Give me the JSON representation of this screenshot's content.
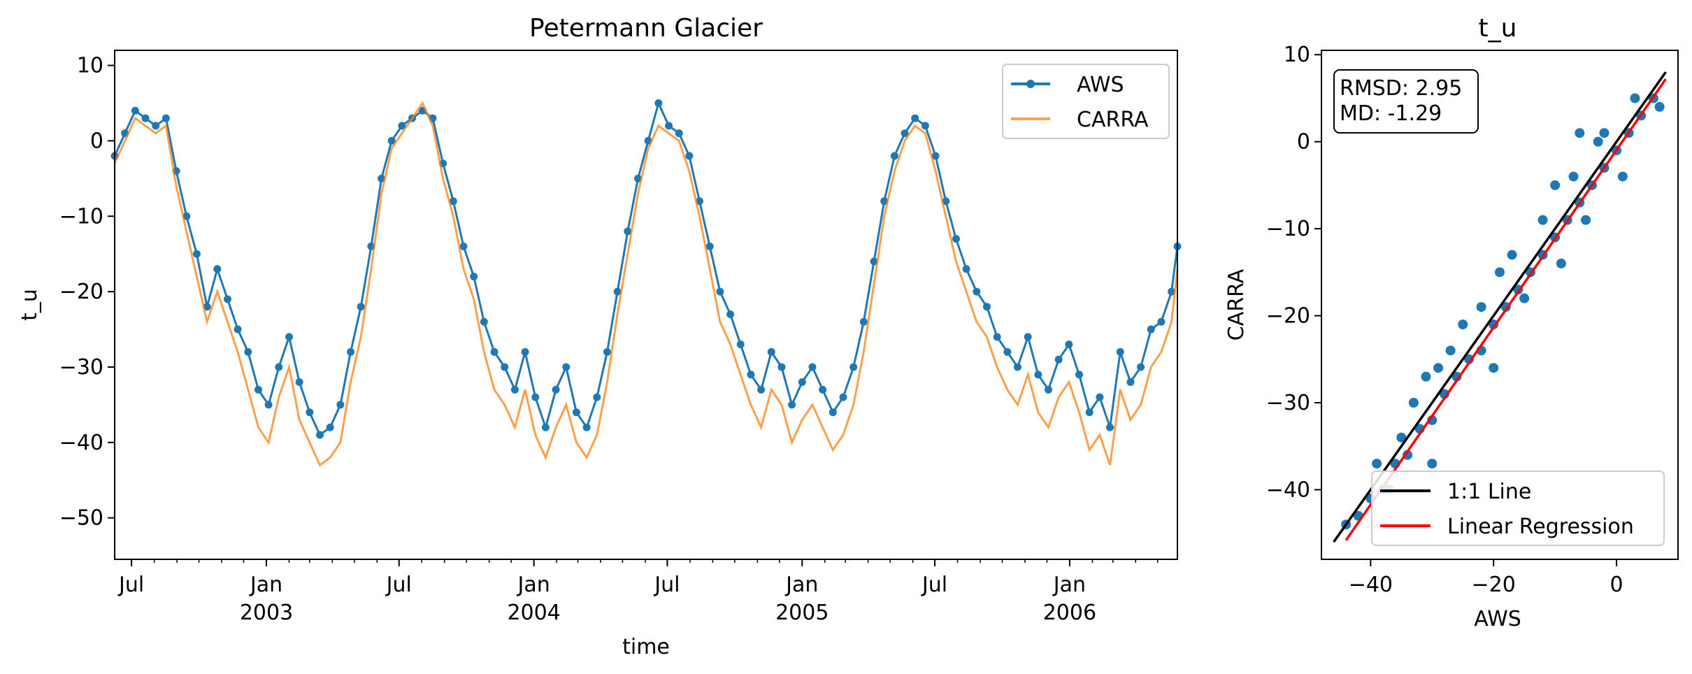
{
  "chart_data": [
    {
      "type": "line",
      "title": "Petermann Glacier",
      "xlabel": "time",
      "ylabel": "t_u",
      "xlim": [
        "2002-06-08",
        "2006-05-28"
      ],
      "ylim": [
        -55.5,
        12
      ],
      "yticks": [
        10,
        0,
        -10,
        -20,
        -30,
        -40,
        -50
      ],
      "yticks_text": [
        "10",
        "0",
        "−10",
        "−20",
        "−30",
        "−40",
        "−50"
      ],
      "xticks": [
        {
          "date": "2002-07-01",
          "label": "Jul",
          "sub": ""
        },
        {
          "date": "2003-01-01",
          "label": "Jan",
          "sub": "2003"
        },
        {
          "date": "2003-07-01",
          "label": "Jul",
          "sub": ""
        },
        {
          "date": "2004-01-01",
          "label": "Jan",
          "sub": "2004"
        },
        {
          "date": "2004-07-01",
          "label": "Jul",
          "sub": ""
        },
        {
          "date": "2005-01-01",
          "label": "Jan",
          "sub": "2005"
        },
        {
          "date": "2005-07-01",
          "label": "Jul",
          "sub": ""
        },
        {
          "date": "2006-01-01",
          "label": "Jan",
          "sub": "2006"
        }
      ],
      "legend": "top-right",
      "grid": false,
      "series": [
        {
          "name": "AWS",
          "color": "#1f77b4",
          "marker": "circle",
          "x": [
            "2002-06-08",
            "2002-06-22",
            "2002-07-06",
            "2002-07-20",
            "2002-08-03",
            "2002-08-17",
            "2002-08-31",
            "2002-09-14",
            "2002-09-28",
            "2002-10-12",
            "2002-10-26",
            "2002-11-09",
            "2002-11-23",
            "2002-12-07",
            "2002-12-21",
            "2003-01-04",
            "2003-01-18",
            "2003-02-01",
            "2003-02-15",
            "2003-03-01",
            "2003-03-15",
            "2003-03-29",
            "2003-04-12",
            "2003-04-26",
            "2003-05-10",
            "2003-05-24",
            "2003-06-07",
            "2003-06-21",
            "2003-07-05",
            "2003-07-19",
            "2003-08-02",
            "2003-08-16",
            "2003-08-30",
            "2003-09-13",
            "2003-09-27",
            "2003-10-11",
            "2003-10-25",
            "2003-11-08",
            "2003-11-22",
            "2003-12-06",
            "2003-12-20",
            "2004-01-03",
            "2004-01-17",
            "2004-01-31",
            "2004-02-14",
            "2004-02-28",
            "2004-03-13",
            "2004-03-27",
            "2004-04-10",
            "2004-04-24",
            "2004-05-08",
            "2004-05-22",
            "2004-06-05",
            "2004-06-19",
            "2004-07-03",
            "2004-07-17",
            "2004-07-31",
            "2004-08-14",
            "2004-08-28",
            "2004-09-11",
            "2004-09-25",
            "2004-10-09",
            "2004-10-23",
            "2004-11-06",
            "2004-11-20",
            "2004-12-04",
            "2004-12-18",
            "2005-01-01",
            "2005-01-15",
            "2005-01-29",
            "2005-02-12",
            "2005-02-26",
            "2005-03-12",
            "2005-03-26",
            "2005-04-09",
            "2005-04-23",
            "2005-05-07",
            "2005-05-21",
            "2005-06-04",
            "2005-06-18",
            "2005-07-02",
            "2005-07-16",
            "2005-07-30",
            "2005-08-13",
            "2005-08-27",
            "2005-09-10",
            "2005-09-24",
            "2005-10-08",
            "2005-10-22",
            "2005-11-05",
            "2005-11-19",
            "2005-12-03",
            "2005-12-17",
            "2005-12-31",
            "2006-01-14",
            "2006-01-28",
            "2006-02-11",
            "2006-02-25",
            "2006-03-11",
            "2006-03-25",
            "2006-04-08",
            "2006-04-22",
            "2006-05-06",
            "2006-05-20",
            "2006-05-28"
          ],
          "y": [
            -2,
            1,
            4,
            3,
            2,
            3,
            -4,
            -10,
            -15,
            -22,
            -17,
            -21,
            -25,
            -28,
            -33,
            -35,
            -30,
            -26,
            -32,
            -36,
            -39,
            -38,
            -35,
            -28,
            -22,
            -14,
            -5,
            0,
            2,
            3,
            4,
            3,
            -3,
            -8,
            -14,
            -18,
            -24,
            -28,
            -30,
            -33,
            -28,
            -34,
            -38,
            -33,
            -30,
            -36,
            -38,
            -34,
            -28,
            -20,
            -12,
            -5,
            0,
            5,
            2,
            1,
            -2,
            -8,
            -14,
            -20,
            -23,
            -27,
            -31,
            -33,
            -28,
            -30,
            -35,
            -32,
            -30,
            -33,
            -36,
            -34,
            -30,
            -24,
            -16,
            -8,
            -2,
            1,
            3,
            2,
            -2,
            -8,
            -13,
            -17,
            -20,
            -22,
            -26,
            -28,
            -30,
            -26,
            -31,
            -33,
            -29,
            -27,
            -31,
            -36,
            -34,
            -38,
            -28,
            -32,
            -30,
            -25,
            -24,
            -20,
            -14
          ]
        },
        {
          "name": "CARRA",
          "color": "#ff7f0e",
          "x": [
            "2002-06-08",
            "2002-06-22",
            "2002-07-06",
            "2002-07-20",
            "2002-08-03",
            "2002-08-17",
            "2002-08-31",
            "2002-09-14",
            "2002-09-28",
            "2002-10-12",
            "2002-10-26",
            "2002-11-09",
            "2002-11-23",
            "2002-12-07",
            "2002-12-21",
            "2003-01-04",
            "2003-01-18",
            "2003-02-01",
            "2003-02-15",
            "2003-03-01",
            "2003-03-15",
            "2003-03-29",
            "2003-04-12",
            "2003-04-26",
            "2003-05-10",
            "2003-05-24",
            "2003-06-07",
            "2003-06-21",
            "2003-07-05",
            "2003-07-19",
            "2003-08-02",
            "2003-08-16",
            "2003-08-30",
            "2003-09-13",
            "2003-09-27",
            "2003-10-11",
            "2003-10-25",
            "2003-11-08",
            "2003-11-22",
            "2003-12-06",
            "2003-12-20",
            "2004-01-03",
            "2004-01-17",
            "2004-01-31",
            "2004-02-14",
            "2004-02-28",
            "2004-03-13",
            "2004-03-27",
            "2004-04-10",
            "2004-04-24",
            "2004-05-08",
            "2004-05-22",
            "2004-06-05",
            "2004-06-19",
            "2004-07-03",
            "2004-07-17",
            "2004-07-31",
            "2004-08-14",
            "2004-08-28",
            "2004-09-11",
            "2004-09-25",
            "2004-10-09",
            "2004-10-23",
            "2004-11-06",
            "2004-11-20",
            "2004-12-04",
            "2004-12-18",
            "2005-01-01",
            "2005-01-15",
            "2005-01-29",
            "2005-02-12",
            "2005-02-26",
            "2005-03-12",
            "2005-03-26",
            "2005-04-09",
            "2005-04-23",
            "2005-05-07",
            "2005-05-21",
            "2005-06-04",
            "2005-06-18",
            "2005-07-02",
            "2005-07-16",
            "2005-07-30",
            "2005-08-13",
            "2005-08-27",
            "2005-09-10",
            "2005-09-24",
            "2005-10-08",
            "2005-10-22",
            "2005-11-05",
            "2005-11-19",
            "2005-12-03",
            "2005-12-17",
            "2005-12-31",
            "2006-01-14",
            "2006-01-28",
            "2006-02-11",
            "2006-02-25",
            "2006-03-11",
            "2006-03-25",
            "2006-04-08",
            "2006-04-22",
            "2006-05-06",
            "2006-05-20",
            "2006-05-28"
          ],
          "y": [
            -3,
            0,
            3,
            2,
            1,
            2,
            -6,
            -12,
            -18,
            -24,
            -20,
            -24,
            -28,
            -33,
            -38,
            -40,
            -34,
            -30,
            -37,
            -40,
            -43,
            -42,
            -40,
            -32,
            -26,
            -17,
            -7,
            -1,
            1,
            3,
            5,
            2,
            -5,
            -10,
            -17,
            -21,
            -28,
            -33,
            -35,
            -38,
            -33,
            -39,
            -42,
            -38,
            -35,
            -40,
            -42,
            -39,
            -32,
            -23,
            -15,
            -7,
            -1,
            2,
            1,
            0,
            -4,
            -10,
            -17,
            -24,
            -27,
            -31,
            -35,
            -38,
            -33,
            -35,
            -40,
            -37,
            -35,
            -38,
            -41,
            -39,
            -35,
            -28,
            -19,
            -10,
            -4,
            0,
            2,
            1,
            -4,
            -10,
            -16,
            -20,
            -24,
            -26,
            -30,
            -33,
            -35,
            -31,
            -36,
            -38,
            -34,
            -32,
            -36,
            -41,
            -39,
            -43,
            -33,
            -37,
            -35,
            -30,
            -28,
            -24,
            -17
          ]
        }
      ]
    },
    {
      "type": "scatter",
      "title": "t_u",
      "xlabel": "AWS",
      "ylabel": "CARRA",
      "xlim": [
        -48,
        10
      ],
      "ylim": [
        -48,
        10.5
      ],
      "xticks": [
        -40,
        -20,
        0
      ],
      "xticks_text": [
        "−40",
        "−20",
        "0"
      ],
      "yticks": [
        10,
        0,
        -10,
        -20,
        -30,
        -40
      ],
      "yticks_text": [
        "10",
        "0",
        "−10",
        "−20",
        "−30",
        "−40"
      ],
      "stats": {
        "rmsd_label": "RMSD: 2.95",
        "md_label": "MD: -1.29"
      },
      "legend": "bottom-right",
      "points_color": "#1f77b4",
      "point_density": [
        {
          "x": -44,
          "y": -44
        },
        {
          "x": -42,
          "y": -43
        },
        {
          "x": -40,
          "y": -41
        },
        {
          "x": -38,
          "y": -40
        },
        {
          "x": -36,
          "y": -37
        },
        {
          "x": -34,
          "y": -36
        },
        {
          "x": -32,
          "y": -33
        },
        {
          "x": -30,
          "y": -32
        },
        {
          "x": -28,
          "y": -29
        },
        {
          "x": -26,
          "y": -27
        },
        {
          "x": -24,
          "y": -25
        },
        {
          "x": -22,
          "y": -24
        },
        {
          "x": -20,
          "y": -21
        },
        {
          "x": -18,
          "y": -19
        },
        {
          "x": -16,
          "y": -17
        },
        {
          "x": -14,
          "y": -15
        },
        {
          "x": -12,
          "y": -13
        },
        {
          "x": -10,
          "y": -11
        },
        {
          "x": -8,
          "y": -9
        },
        {
          "x": -6,
          "y": -7
        },
        {
          "x": -4,
          "y": -5
        },
        {
          "x": -2,
          "y": -3
        },
        {
          "x": 0,
          "y": -1
        },
        {
          "x": 2,
          "y": 1
        },
        {
          "x": 4,
          "y": 3
        },
        {
          "x": 6,
          "y": 5
        },
        {
          "x": -31,
          "y": -27
        },
        {
          "x": -27,
          "y": -24
        },
        {
          "x": -22,
          "y": -19
        },
        {
          "x": -17,
          "y": -13
        },
        {
          "x": -12,
          "y": -9
        },
        {
          "x": -7,
          "y": -4
        },
        {
          "x": -2,
          "y": 1
        },
        {
          "x": 3,
          "y": 5
        },
        {
          "x": -35,
          "y": -34
        },
        {
          "x": -25,
          "y": -21
        },
        {
          "x": -15,
          "y": -18
        },
        {
          "x": -5,
          "y": -9
        },
        {
          "x": -10,
          "y": -5
        },
        {
          "x": -3,
          "y": 0
        },
        {
          "x": -6,
          "y": 1
        },
        {
          "x": -20,
          "y": -26
        },
        {
          "x": -30,
          "y": -37
        },
        {
          "x": 7,
          "y": 4
        },
        {
          "x": 1,
          "y": -4
        },
        {
          "x": -9,
          "y": -14
        },
        {
          "x": -19,
          "y": -15
        },
        {
          "x": -29,
          "y": -26
        },
        {
          "x": -33,
          "y": -30
        },
        {
          "x": -37,
          "y": -40
        },
        {
          "x": -39,
          "y": -37
        }
      ],
      "series": [
        {
          "name": "1:1 Line",
          "color": "#000000",
          "x": [
            -46,
            8
          ],
          "y": [
            -46,
            8
          ]
        },
        {
          "name": "Linear Regression",
          "color": "#ff0000",
          "x": [
            -44,
            8
          ],
          "y": [
            -45.8,
            7.2
          ]
        }
      ]
    }
  ]
}
